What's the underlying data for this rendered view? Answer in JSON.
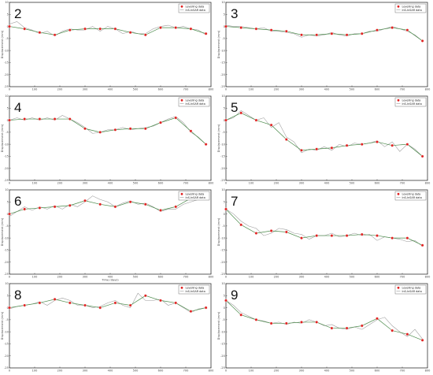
{
  "chart_data": [
    {
      "type": "line",
      "panel_label": "2",
      "ylabel": "Displacement (mm)",
      "xlabel": "",
      "xlim": [
        0,
        800
      ],
      "ylim": [
        -25,
        10
      ],
      "xticks": [
        0,
        100,
        200,
        300,
        400,
        500,
        600,
        700,
        800
      ],
      "yticks": [
        -25,
        -20,
        -15,
        -10,
        -5,
        0,
        5,
        10
      ],
      "legend": {
        "position": "top-right",
        "entries": [
          "Levelling data",
          "InS-InSAR data"
        ]
      },
      "series": [
        {
          "name": "Levelling data",
          "x": [
            0,
            60,
            120,
            180,
            240,
            300,
            360,
            420,
            480,
            540,
            600,
            660,
            720,
            780
          ],
          "y": [
            0,
            -1,
            -2.5,
            -3.5,
            -1.5,
            -1,
            -1,
            -1,
            -2.5,
            -3.5,
            -0.5,
            -0.5,
            -1,
            -3
          ]
        },
        {
          "name": "InS-InSAR data",
          "x": [
            0,
            30,
            60,
            90,
            120,
            150,
            180,
            210,
            240,
            270,
            300,
            330,
            360,
            390,
            420,
            450,
            480,
            510,
            540,
            570,
            600,
            630,
            660,
            690,
            720,
            750,
            780
          ],
          "y": [
            1,
            2,
            -0.5,
            -1.5,
            -3,
            -2,
            -4,
            -2,
            -1,
            -1.5,
            -1.5,
            0,
            -2,
            0,
            -1,
            -3,
            -2,
            -3,
            -3,
            -1,
            0,
            0.5,
            -0.5,
            0,
            -1,
            -1.5,
            -3.5
          ]
        }
      ]
    },
    {
      "type": "line",
      "panel_label": "3",
      "ylabel": "Displacement (mm)",
      "xlabel": "",
      "xlim": [
        0,
        800
      ],
      "ylim": [
        -25,
        10
      ],
      "xticks": [
        0,
        100,
        200,
        300,
        400,
        500,
        600,
        700,
        800
      ],
      "yticks": [
        -25,
        -20,
        -15,
        -10,
        -5,
        0,
        5,
        10
      ],
      "legend": {
        "position": "top-right",
        "entries": [
          "Levelling data",
          "InS-InSAR data"
        ]
      },
      "series": [
        {
          "name": "Levelling data",
          "x": [
            0,
            60,
            120,
            180,
            240,
            300,
            360,
            420,
            480,
            540,
            600,
            660,
            720,
            780
          ],
          "y": [
            0,
            -0.5,
            -1,
            -1.5,
            -2,
            -3.5,
            -3.5,
            -3,
            -3.5,
            -3,
            -1.5,
            -0.5,
            -1.5,
            -6
          ]
        },
        {
          "name": "InS-InSAR data",
          "x": [
            0,
            30,
            60,
            90,
            120,
            150,
            180,
            210,
            240,
            270,
            300,
            330,
            360,
            390,
            420,
            450,
            480,
            510,
            540,
            570,
            600,
            630,
            660,
            690,
            720,
            750,
            780
          ],
          "y": [
            0.5,
            0,
            0,
            -0.5,
            -1,
            -0.5,
            -2,
            -2,
            -2.5,
            -3,
            -4.5,
            -3.5,
            -4,
            -3.5,
            -2.5,
            -3.5,
            -4,
            -3,
            -3,
            -2,
            -2,
            -1,
            0,
            -1,
            -2,
            -3.5,
            -6
          ]
        }
      ]
    },
    {
      "type": "line",
      "panel_label": "4",
      "ylabel": "Displacement (mm)",
      "xlabel": "",
      "xlim": [
        0,
        800
      ],
      "ylim": [
        -25,
        10
      ],
      "xticks": [
        0,
        100,
        200,
        300,
        400,
        500,
        600,
        700,
        800
      ],
      "yticks": [
        -25,
        -20,
        -15,
        -10,
        -5,
        0,
        5,
        10
      ],
      "legend": {
        "position": "top-right",
        "entries": [
          "Levelling data",
          "InS-InSAR data"
        ]
      },
      "series": [
        {
          "name": "Levelling data",
          "x": [
            0,
            60,
            120,
            180,
            240,
            300,
            360,
            420,
            480,
            540,
            600,
            660,
            720,
            780
          ],
          "y": [
            0,
            0.5,
            0.5,
            0.5,
            0.5,
            -3.5,
            -5,
            -4,
            -3.5,
            -3.5,
            -1,
            1,
            -4.5,
            -10
          ]
        },
        {
          "name": "InS-InSAR data",
          "x": [
            0,
            30,
            60,
            90,
            120,
            150,
            180,
            210,
            240,
            270,
            300,
            330,
            360,
            390,
            420,
            450,
            480,
            510,
            540,
            570,
            600,
            630,
            660,
            690,
            720,
            750,
            780
          ],
          "y": [
            0,
            1,
            0,
            1,
            0,
            1,
            0,
            2,
            0.5,
            -1,
            -3,
            -5.5,
            -5,
            -4,
            -4,
            -3,
            -4,
            -3.5,
            -3,
            -2.5,
            -1,
            0.5,
            1.5,
            -1,
            -5,
            -7,
            -10
          ]
        }
      ]
    },
    {
      "type": "line",
      "panel_label": "5",
      "ylabel": "Displacement (mm)",
      "xlabel": "",
      "xlim": [
        0,
        800
      ],
      "ylim": [
        -25,
        10
      ],
      "xticks": [
        0,
        100,
        200,
        300,
        400,
        500,
        600,
        700,
        800
      ],
      "yticks": [
        -25,
        -20,
        -15,
        -10,
        -5,
        0,
        5,
        10
      ],
      "legend": {
        "position": "top-right",
        "entries": [
          "Levelling data",
          "InS-InSAR data"
        ]
      },
      "series": [
        {
          "name": "Levelling data",
          "x": [
            0,
            60,
            120,
            180,
            240,
            300,
            360,
            420,
            480,
            540,
            600,
            660,
            720,
            780
          ],
          "y": [
            0,
            3,
            0,
            -2,
            -8,
            -12.5,
            -12,
            -11.5,
            -10.5,
            -10,
            -9,
            -10.5,
            -10,
            -15
          ]
        },
        {
          "name": "InS-InSAR data",
          "x": [
            0,
            30,
            60,
            90,
            120,
            150,
            180,
            210,
            240,
            270,
            300,
            330,
            360,
            390,
            420,
            450,
            480,
            510,
            540,
            570,
            600,
            630,
            660,
            690,
            720,
            750,
            780
          ],
          "y": [
            0,
            1,
            4,
            2,
            0,
            1,
            -3,
            -1,
            -7,
            -9,
            -13.5,
            -12,
            -12.5,
            -11,
            -12.5,
            -10,
            -11,
            -9.5,
            -10,
            -9.5,
            -8.5,
            -11,
            -9,
            -13,
            -10,
            -12,
            -15
          ]
        }
      ]
    },
    {
      "type": "line",
      "panel_label": "6",
      "ylabel": "Displacement (mm)",
      "xlabel": "Time (days)",
      "xlim": [
        0,
        800
      ],
      "ylim": [
        -25,
        10
      ],
      "xticks": [
        0,
        100,
        200,
        300,
        400,
        500,
        600,
        700,
        800
      ],
      "yticks": [
        -25,
        -20,
        -15,
        -10,
        -5,
        0,
        5,
        10
      ],
      "legend": {
        "position": "top-right",
        "entries": [
          "Levelling data",
          "InS-InSAR data"
        ]
      },
      "series": [
        {
          "name": "Levelling data",
          "x": [
            0,
            60,
            120,
            180,
            240,
            300,
            360,
            420,
            480,
            540,
            600,
            660,
            720,
            780
          ],
          "y": [
            0,
            2,
            2.5,
            3,
            3.5,
            5.5,
            4,
            3,
            5,
            4,
            1.5,
            3,
            6.5,
            8
          ]
        },
        {
          "name": "InS-InSAR data",
          "x": [
            0,
            30,
            60,
            90,
            120,
            150,
            180,
            210,
            240,
            270,
            300,
            330,
            360,
            390,
            420,
            450,
            480,
            510,
            540,
            570,
            600,
            630,
            660,
            690,
            720,
            750,
            780
          ],
          "y": [
            -1,
            1,
            3,
            1.5,
            3,
            2,
            3.5,
            2,
            4,
            3,
            5,
            7.5,
            6,
            5,
            3,
            4.5,
            5.5,
            4,
            4.5,
            3,
            1,
            2,
            2,
            4,
            5,
            6,
            8
          ]
        }
      ]
    },
    {
      "type": "line",
      "panel_label": "7",
      "ylabel": "Displacement (mm)",
      "xlabel": "",
      "xlim": [
        0,
        800
      ],
      "ylim": [
        -25,
        10
      ],
      "xticks": [
        0,
        100,
        200,
        300,
        400,
        500,
        600,
        700,
        800
      ],
      "yticks": [
        -25,
        -20,
        -15,
        -10,
        -5,
        0,
        5,
        10
      ],
      "legend": {
        "position": "top-right",
        "entries": [
          "Levelling data",
          "InS-InSAR data"
        ]
      },
      "series": [
        {
          "name": "Levelling data",
          "x": [
            0,
            60,
            120,
            180,
            240,
            300,
            360,
            420,
            480,
            540,
            600,
            660,
            720,
            780
          ],
          "y": [
            2,
            -4.5,
            -8,
            -7,
            -7.5,
            -10,
            -9,
            -9,
            -9,
            -8.5,
            -9,
            -10,
            -10,
            -13
          ]
        },
        {
          "name": "InS-InSAR data",
          "x": [
            0,
            30,
            60,
            90,
            120,
            150,
            180,
            210,
            240,
            270,
            300,
            330,
            360,
            390,
            420,
            450,
            480,
            510,
            540,
            570,
            600,
            630,
            660,
            690,
            720,
            750,
            780
          ],
          "y": [
            2,
            0,
            -3,
            -5,
            -6,
            -9,
            -8,
            -6,
            -6.5,
            -8,
            -8.5,
            -10.5,
            -9,
            -9,
            -8,
            -9.5,
            -9,
            -8,
            -9,
            -8.5,
            -11,
            -9.5,
            -10,
            -10.5,
            -11.5,
            -11,
            -13.5
          ]
        }
      ]
    },
    {
      "type": "line",
      "panel_label": "8",
      "ylabel": "Displacement (mm)",
      "xlabel": "",
      "xlim": [
        0,
        800
      ],
      "ylim": [
        -25,
        10
      ],
      "xticks": [
        0,
        100,
        200,
        300,
        400,
        500,
        600,
        700,
        800
      ],
      "yticks": [
        -25,
        -20,
        -15,
        -10,
        -5,
        0,
        5,
        10
      ],
      "legend": {
        "position": "top-right",
        "entries": [
          "Levelling data",
          "InS-InSAR data"
        ]
      },
      "series": [
        {
          "name": "Levelling data",
          "x": [
            0,
            60,
            120,
            180,
            240,
            300,
            360,
            420,
            480,
            540,
            600,
            660,
            720,
            780
          ],
          "y": [
            0,
            1,
            2,
            3.5,
            2,
            1,
            0,
            2,
            1,
            5,
            3,
            2,
            -1.5,
            0
          ]
        },
        {
          "name": "InS-InSAR data",
          "x": [
            0,
            30,
            60,
            90,
            120,
            150,
            180,
            210,
            240,
            270,
            300,
            330,
            360,
            390,
            420,
            450,
            480,
            510,
            540,
            570,
            600,
            630,
            660,
            690,
            720,
            750,
            780
          ],
          "y": [
            -0.5,
            0.5,
            1,
            1.5,
            2.5,
            1,
            3,
            4,
            3,
            1,
            1,
            0,
            0.5,
            2,
            3,
            1,
            0,
            6,
            3,
            3,
            3.5,
            1,
            2,
            0,
            -2,
            -0.5,
            0
          ]
        }
      ]
    },
    {
      "type": "line",
      "panel_label": "9",
      "ylabel": "Displacement (mm)",
      "xlabel": "",
      "xlim": [
        0,
        800
      ],
      "ylim": [
        -25,
        10
      ],
      "xticks": [
        0,
        100,
        200,
        300,
        400,
        500,
        600,
        700,
        800
      ],
      "yticks": [
        -25,
        -20,
        -15,
        -10,
        -5,
        0,
        5,
        10
      ],
      "legend": {
        "position": "top-right",
        "entries": [
          "Levelling data",
          "InS-InSAR data"
        ]
      },
      "series": [
        {
          "name": "Levelling data",
          "x": [
            0,
            60,
            120,
            180,
            240,
            300,
            360,
            420,
            480,
            540,
            600,
            660,
            720,
            780
          ],
          "y": [
            3,
            -3,
            -5,
            -6.5,
            -6.5,
            -6,
            -6,
            -8.5,
            -8.5,
            -7.5,
            -4.5,
            -9.5,
            -11,
            -13.5
          ]
        },
        {
          "name": "InS-InSAR data",
          "x": [
            0,
            30,
            60,
            90,
            120,
            150,
            180,
            210,
            240,
            270,
            300,
            330,
            360,
            390,
            420,
            450,
            480,
            510,
            540,
            570,
            600,
            630,
            660,
            690,
            720,
            750,
            780
          ],
          "y": [
            3,
            1,
            -2,
            -3.5,
            -5,
            -5.5,
            -6.5,
            -6,
            -7,
            -6,
            -6.5,
            -5,
            -6,
            -7.5,
            -7,
            -8.5,
            -9,
            -8,
            -9,
            -7,
            -5,
            -4,
            -7.5,
            -10,
            -12,
            -9,
            -13
          ]
        }
      ]
    }
  ]
}
